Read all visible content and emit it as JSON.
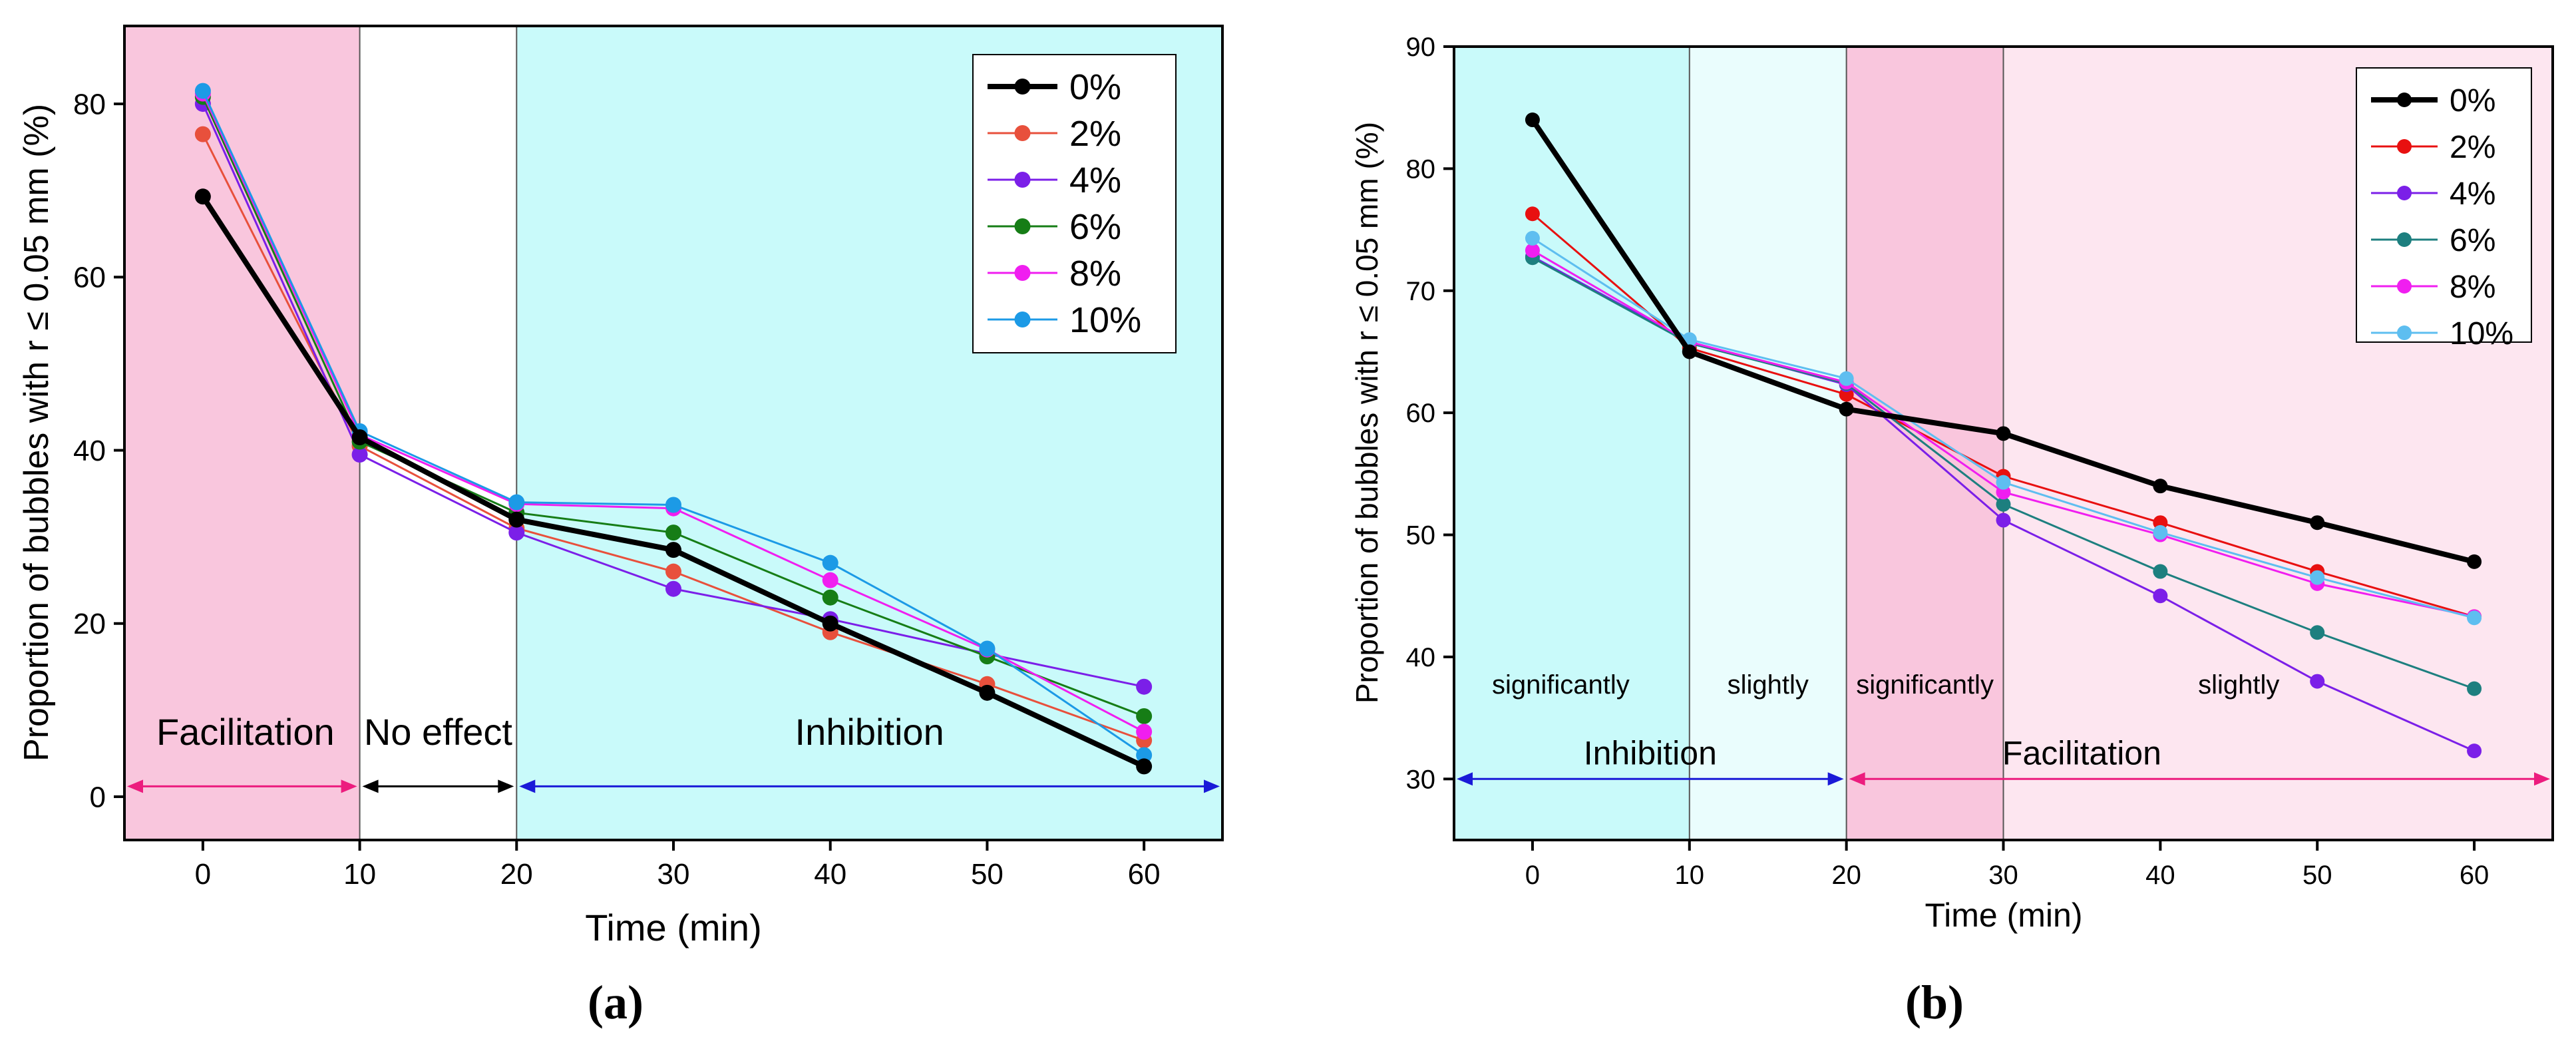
{
  "chart_data": [
    {
      "type": "line",
      "panel_label": "(a)",
      "xlabel": "Time (min)",
      "ylabel": "Proportion of bubbles with r ≤ 0.05 mm (%)",
      "x": [
        0,
        10,
        20,
        30,
        40,
        50,
        60
      ],
      "xlim": [
        -5,
        65
      ],
      "ylim": [
        -5,
        89
      ],
      "xticks": [
        "0",
        "10",
        "20",
        "30",
        "40",
        "50",
        "60"
      ],
      "yticks": [
        "0",
        "20",
        "40",
        "60",
        "80"
      ],
      "ytick_values": [
        0,
        20,
        40,
        60,
        80
      ],
      "legend": "top-right",
      "regions": [
        {
          "from": -5,
          "to": 10,
          "color": "#f9c6dd",
          "label": "Facilitation",
          "label_color": "#ec1c7e",
          "arrow_color": "#ec1c7e"
        },
        {
          "from": 10,
          "to": 20,
          "color": "#ffffff",
          "label": "No effect",
          "label_color": "#000000",
          "arrow_color": "#000000"
        },
        {
          "from": 20,
          "to": 65,
          "color": "#c9fafa",
          "label": "Inhibition",
          "label_color": "#1a1ad8",
          "arrow_color": "#1a1ad8"
        }
      ],
      "arrow_y": 1.2,
      "region_label_y": 6,
      "series": [
        {
          "name": "0%",
          "color": "#000000",
          "values": [
            69.3,
            41.5,
            32,
            28.5,
            20,
            12,
            3.5
          ]
        },
        {
          "name": "2%",
          "color": "#e8503c",
          "values": [
            76.5,
            40.5,
            31,
            26,
            19,
            13,
            6.5
          ]
        },
        {
          "name": "4%",
          "color": "#7b1fe8",
          "values": [
            80,
            39.5,
            30.5,
            24,
            20.5,
            16.5,
            12.7
          ]
        },
        {
          "name": "6%",
          "color": "#167d16",
          "values": [
            80.8,
            41,
            32.8,
            30.5,
            23,
            16.2,
            9.3
          ]
        },
        {
          "name": "8%",
          "color": "#f01ef0",
          "values": [
            81.2,
            41.8,
            33.8,
            33.3,
            25,
            17,
            7.5
          ]
        },
        {
          "name": "10%",
          "color": "#1c9ae6",
          "values": [
            81.5,
            42.2,
            34,
            33.7,
            27,
            17.1,
            4.8
          ]
        }
      ],
      "annotations": []
    },
    {
      "type": "line",
      "panel_label": "(b)",
      "xlabel": "Time (min)",
      "ylabel": "Proportion of bubbles with r ≤ 0.05 mm (%)",
      "x": [
        0,
        10,
        20,
        30,
        40,
        50,
        60
      ],
      "xlim": [
        -5,
        65
      ],
      "ylim": [
        25,
        90
      ],
      "xticks": [
        "0",
        "10",
        "20",
        "30",
        "40",
        "50",
        "60"
      ],
      "yticks": [
        "30",
        "40",
        "50",
        "60",
        "70",
        "80",
        "90"
      ],
      "ytick_values": [
        30,
        40,
        50,
        60,
        70,
        80,
        90
      ],
      "legend": "top-right",
      "regions": [
        {
          "from": -5,
          "to": 10,
          "color": "#c9fafa",
          "label": "",
          "label_color": "#1a1ad8",
          "arrow_color": "#1a1ad8"
        },
        {
          "from": 10,
          "to": 20,
          "color": "#eafdfd",
          "label": "",
          "label_color": "#1a1ad8",
          "arrow_color": "#1a1ad8"
        },
        {
          "from": 20,
          "to": 30,
          "color": "#f9c6dd",
          "label": "",
          "label_color": "#ec1c7e",
          "arrow_color": "#ec1c7e"
        },
        {
          "from": 30,
          "to": 65,
          "color": "#fde6f0",
          "label": "",
          "label_color": "#ec1c7e",
          "arrow_color": "#ec1c7e"
        }
      ],
      "arrows": [
        {
          "from": -5,
          "to": 20,
          "y": 30,
          "color": "#1a1ad8",
          "label": "Inhibition",
          "label_x": 7.5
        },
        {
          "from": 20,
          "to": 65,
          "y": 30,
          "color": "#ec1c7e",
          "label": "Facilitation",
          "label_x": 35
        }
      ],
      "annotations": [
        {
          "text": "significantly",
          "x": 1.8,
          "y": 37,
          "color": "#1a1ad8"
        },
        {
          "text": "slightly",
          "x": 15,
          "y": 37,
          "color": "#1a1ad8"
        },
        {
          "text": "significantly",
          "x": 25,
          "y": 37,
          "color": "#ec1c7e"
        },
        {
          "text": "slightly",
          "x": 45,
          "y": 37,
          "color": "#ec1c7e"
        }
      ],
      "series": [
        {
          "name": "0%",
          "color": "#000000",
          "values": [
            84,
            65,
            60.3,
            58.3,
            54,
            51,
            47.8
          ]
        },
        {
          "name": "2%",
          "color": "#e81010",
          "values": [
            76.3,
            65.3,
            61.5,
            54.8,
            51,
            47,
            43.3
          ]
        },
        {
          "name": "4%",
          "color": "#7b1fe8",
          "values": [
            72.8,
            65.8,
            62.3,
            51.2,
            45,
            38,
            32.3
          ]
        },
        {
          "name": "6%",
          "color": "#1d7f7f",
          "values": [
            72.7,
            65.7,
            62.4,
            52.5,
            47,
            42,
            37.4
          ]
        },
        {
          "name": "8%",
          "color": "#f01ef0",
          "values": [
            73.3,
            65.8,
            62.5,
            53.5,
            50,
            46,
            43.3
          ]
        },
        {
          "name": "10%",
          "color": "#5ebef0",
          "values": [
            74.3,
            66,
            62.8,
            54.3,
            50.2,
            46.5,
            43.2
          ]
        }
      ]
    }
  ]
}
